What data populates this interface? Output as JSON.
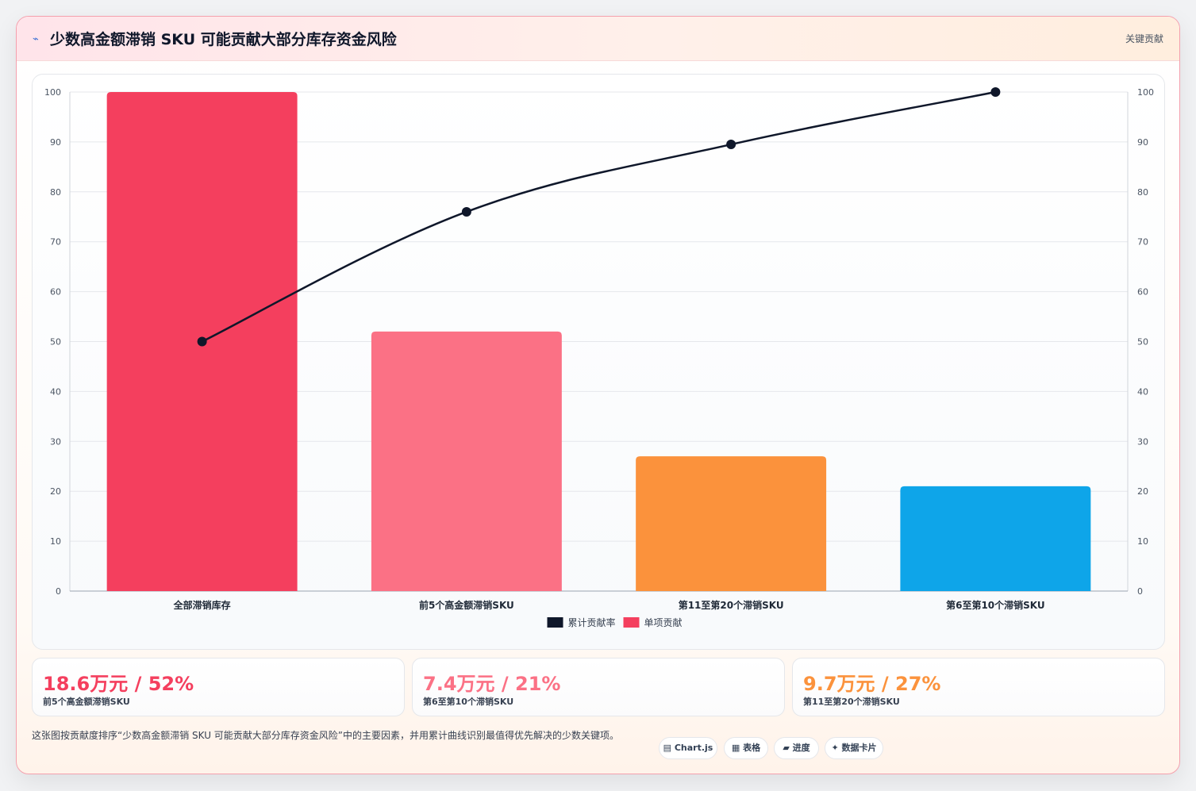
{
  "header": {
    "title_icon": "chart-trend-icon",
    "title": "少数高金额滞销 SKU 可能贡献大部分库存资金风险",
    "tag": "关键贡献"
  },
  "chart_data": {
    "type": "bar",
    "categories": [
      "全部滞销库存",
      "前5个高金额滞销SKU",
      "第11至第20个滞销SKU",
      "第6至第10个滞销SKU"
    ],
    "series": [
      {
        "name": "单项贡献",
        "kind": "bar",
        "values": [
          100,
          52,
          27,
          21
        ],
        "colors": [
          "#f43f5e",
          "#fb7185",
          "#fb923c",
          "#0ea5e9"
        ]
      },
      {
        "name": "累计贡献率",
        "kind": "line",
        "values": [
          50,
          76,
          89.5,
          100
        ],
        "color": "#0f172a"
      }
    ],
    "ylim": [
      0,
      100
    ],
    "y2lim": [
      0,
      100
    ],
    "yticks": [
      0,
      10,
      20,
      30,
      40,
      50,
      60,
      70,
      80,
      90,
      100
    ],
    "grid": true,
    "legend": "bottom-center",
    "legend_colors": {
      "line": "#0f172a",
      "bar": "#f43f5e"
    }
  },
  "kpis": [
    {
      "value": "18.6万元 / 52%",
      "label": "前5个高金额滞销SKU",
      "color": "#f43f5e"
    },
    {
      "value": "7.4万元 / 21%",
      "label": "第6至第10个滞销SKU",
      "color": "#fb7185"
    },
    {
      "value": "9.7万元 / 27%",
      "label": "第11至第20个滞销SKU",
      "color": "#fb923c"
    }
  ],
  "footnote": "这张图按贡献度排序“少数高金额滞销 SKU 可能贡献大部分库存资金风险”中的主要因素，并用累计曲线识别最值得优先解决的少数关键项。",
  "chips": [
    {
      "label": "▤ Chart.js",
      "icon": "chart-icon"
    },
    {
      "label": "▦ 表格",
      "icon": "table-icon"
    },
    {
      "label": "▰ 进度",
      "icon": "progress-icon"
    },
    {
      "label": "✦ 数据卡片",
      "icon": "sparkle-icon"
    }
  ]
}
